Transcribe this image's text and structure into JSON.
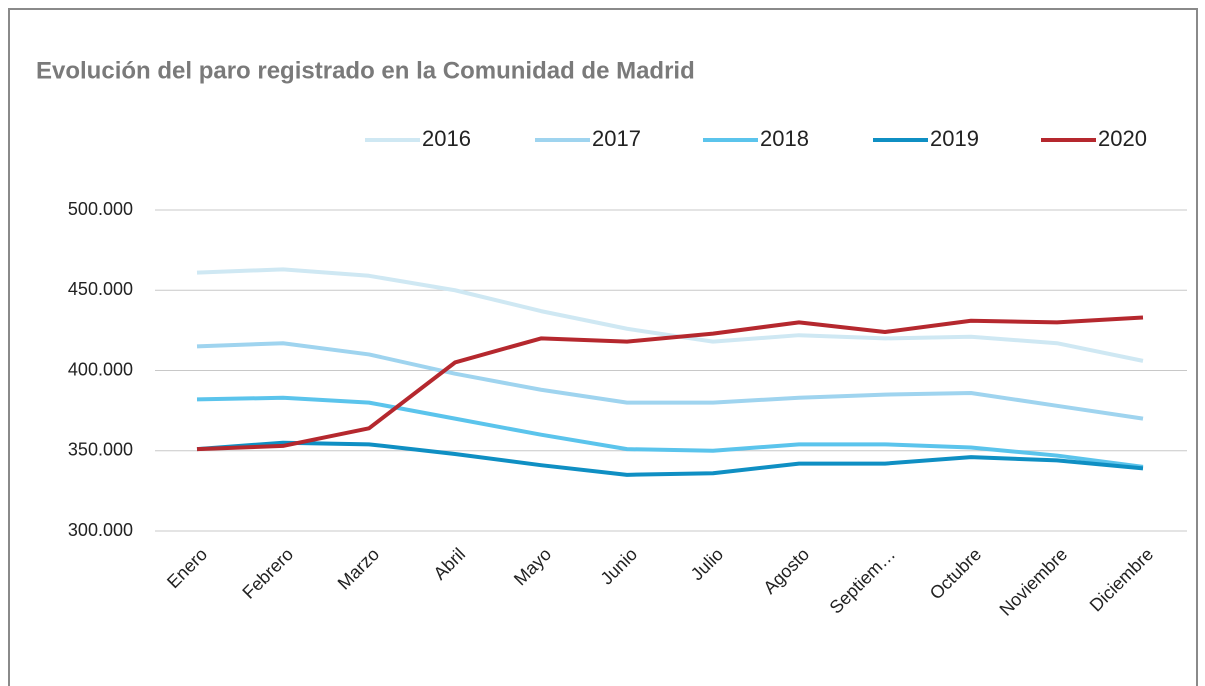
{
  "chart_data": {
    "type": "line",
    "title": "Evolución del paro registrado en la Comunidad de Madrid",
    "categories": [
      "Enero",
      "Febrero",
      "Marzo",
      "Abril",
      "Mayo",
      "Junio",
      "Julio",
      "Agosto",
      "Septiem…",
      "Octubre",
      "Noviembre",
      "Diciembre"
    ],
    "series": [
      {
        "name": "2016",
        "color": "#cfe8f3",
        "values": [
          461000,
          463000,
          459000,
          450000,
          437000,
          426000,
          418000,
          422000,
          420000,
          421000,
          417000,
          406000
        ]
      },
      {
        "name": "2017",
        "color": "#9fd4ef",
        "values": [
          415000,
          417000,
          410000,
          398000,
          388000,
          380000,
          380000,
          383000,
          385000,
          386000,
          378000,
          370000
        ]
      },
      {
        "name": "2018",
        "color": "#5bc4ec",
        "values": [
          382000,
          383000,
          380000,
          370000,
          360000,
          351000,
          350000,
          354000,
          354000,
          352000,
          347000,
          340000
        ]
      },
      {
        "name": "2019",
        "color": "#0f8fc3",
        "values": [
          351000,
          355000,
          354000,
          348000,
          341000,
          335000,
          336000,
          342000,
          342000,
          346000,
          344000,
          339000
        ]
      },
      {
        "name": "2020",
        "color": "#b5282e",
        "values": [
          351000,
          353000,
          364000,
          405000,
          420000,
          418000,
          423000,
          430000,
          424000,
          431000,
          430000,
          433000
        ]
      }
    ],
    "ylim": [
      300000,
      500000
    ],
    "yticks": [
      {
        "value": 300000,
        "label": "300.000"
      },
      {
        "value": 350000,
        "label": "350.000"
      },
      {
        "value": 400000,
        "label": "400.000"
      },
      {
        "value": 450000,
        "label": "450.000"
      },
      {
        "value": 500000,
        "label": "500.000"
      }
    ],
    "grid": true,
    "legend": "top"
  }
}
